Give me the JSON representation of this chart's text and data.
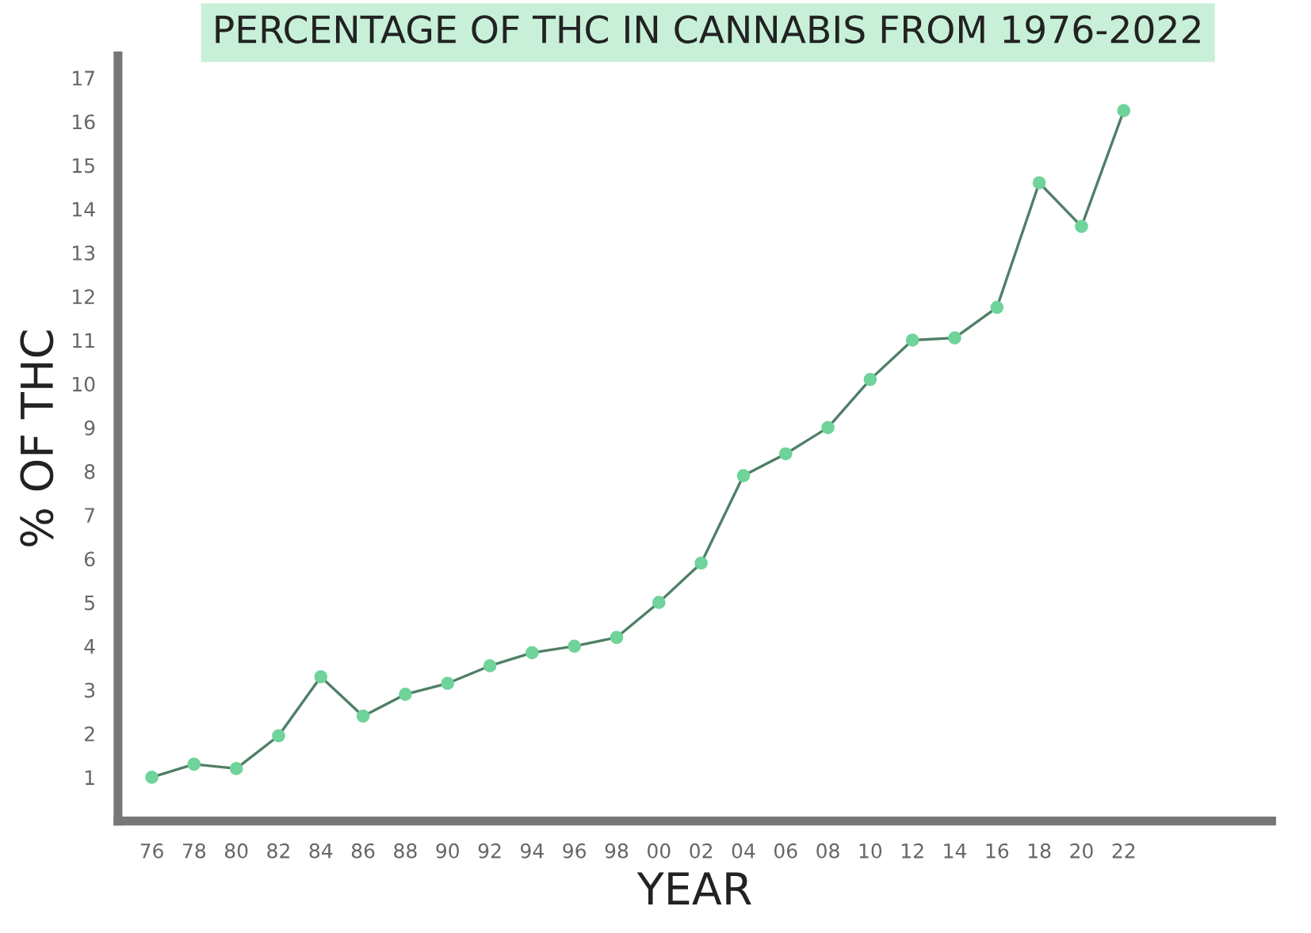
{
  "chart_data": {
    "type": "line",
    "title": "PERCENTAGE OF THC IN CANNABIS FROM 1976-2022",
    "xlabel": "YEAR",
    "ylabel": "% OF THC",
    "categories": [
      "76",
      "78",
      "80",
      "82",
      "84",
      "86",
      "88",
      "90",
      "92",
      "94",
      "96",
      "98",
      "00",
      "02",
      "04",
      "06",
      "08",
      "10",
      "12",
      "14",
      "16",
      "18",
      "20",
      "22"
    ],
    "series": [
      {
        "color": "#6fd39a",
        "values": [
          1.0,
          1.3,
          1.2,
          1.95,
          3.3,
          2.4,
          2.9,
          3.15,
          3.55,
          3.85,
          4.0,
          4.2,
          5.0,
          5.9,
          7.9,
          8.4,
          9.0,
          10.1,
          11.0,
          11.05,
          11.75,
          14.6,
          13.6,
          16.25
        ]
      }
    ],
    "ylim": [
      0,
      17.5
    ],
    "yticks": [
      1,
      2,
      3,
      4,
      5,
      6,
      7,
      8,
      9,
      10,
      11,
      12,
      13,
      14,
      15,
      16,
      17
    ],
    "grid": false,
    "legend": false,
    "marker": "circle",
    "line_style": "solid"
  }
}
